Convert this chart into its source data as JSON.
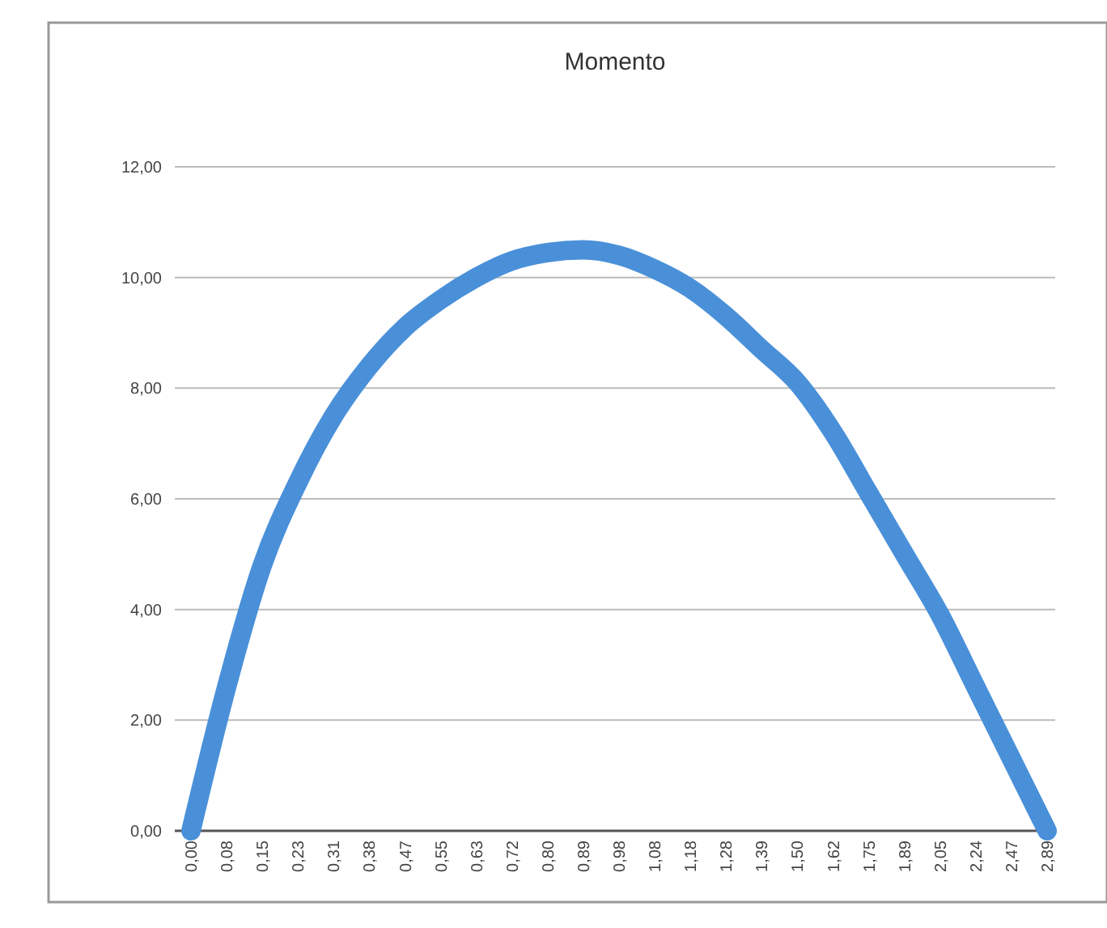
{
  "chart_data": {
    "type": "line",
    "title": "Momento",
    "categories": [
      "0,00",
      "0,08",
      "0,15",
      "0,23",
      "0,31",
      "0,38",
      "0,47",
      "0,55",
      "0,63",
      "0,72",
      "0,80",
      "0,89",
      "0,98",
      "1,08",
      "1,18",
      "1,28",
      "1,39",
      "1,50",
      "1,62",
      "1,75",
      "1,89",
      "2,05",
      "2,24",
      "2,47",
      "2,89"
    ],
    "series": [
      {
        "color": "#4a90d9",
        "values": [
          0,
          2.6,
          4.8,
          6.3,
          7.5,
          8.4,
          9.1,
          9.6,
          10.0,
          10.3,
          10.45,
          10.5,
          10.4,
          10.15,
          9.8,
          9.3,
          8.7,
          8.1,
          7.2,
          6.1,
          5.0,
          3.9,
          2.6,
          1.3,
          0
        ]
      }
    ],
    "ylim": [
      0,
      12
    ],
    "yticks": [
      {
        "value": 0,
        "label": "0,00"
      },
      {
        "value": 2,
        "label": "2,00"
      },
      {
        "value": 4,
        "label": "4,00"
      },
      {
        "value": 6,
        "label": "6,00"
      },
      {
        "value": 8,
        "label": "8,00"
      },
      {
        "value": 10,
        "label": "10,00"
      },
      {
        "value": 12,
        "label": "12,00"
      }
    ],
    "grid": "y",
    "line_style": "solid"
  }
}
